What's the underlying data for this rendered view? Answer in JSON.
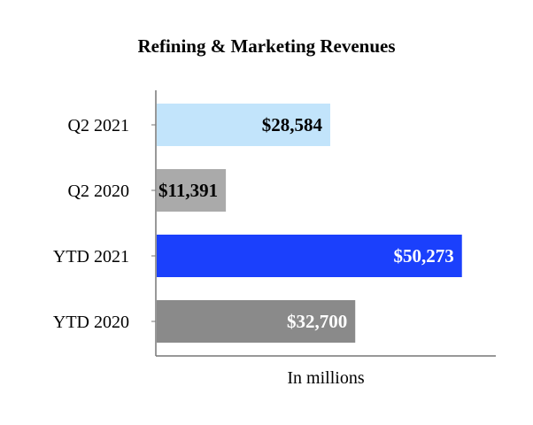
{
  "chart_data": {
    "type": "bar",
    "orientation": "horizontal",
    "title": "Refining & Marketing Revenues",
    "xlabel": "In millions",
    "ylabel": "",
    "categories": [
      "Q2 2021",
      "Q2 2020",
      "YTD 2021",
      "YTD 2020"
    ],
    "values": [
      28584,
      11391,
      50273,
      32700
    ],
    "value_labels": [
      "$28,584",
      "$11,391",
      "$50,273",
      "$32,700"
    ],
    "bar_colors": [
      "#c2e4fb",
      "#aaaaaa",
      "#1b40fc",
      "#8a8a8a"
    ],
    "label_colors": [
      "#000000",
      "#000000",
      "#ffffff",
      "#ffffff"
    ],
    "xlim": [
      0,
      56000
    ],
    "grid": false,
    "legend": "none"
  }
}
